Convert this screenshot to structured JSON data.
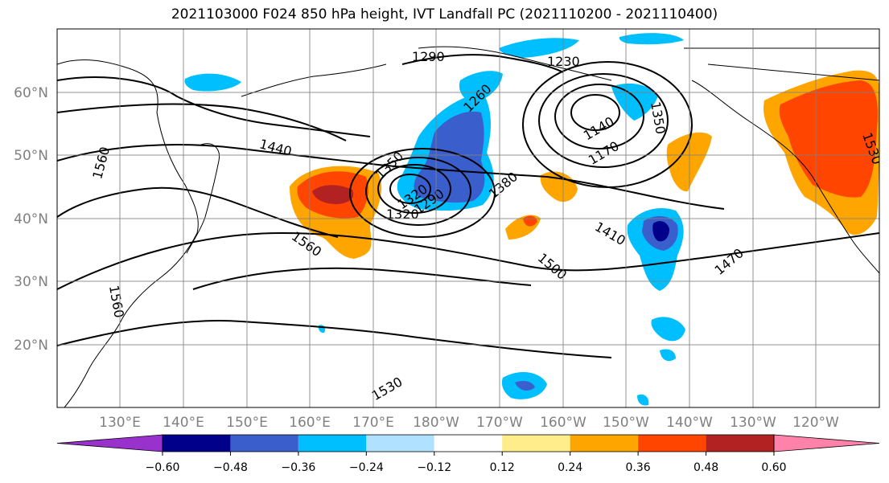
{
  "title": "2021103000 F024 850 hPa height, IVT Landfall PC (2021110200 - 2021110400)",
  "map": {
    "projection": "PlateCarree",
    "lon_range": [
      "120°E",
      "130°W"
    ],
    "lat_range": [
      "10°N",
      "70°N"
    ],
    "grid": true,
    "lat_labels": [
      "60°N",
      "50°N",
      "40°N",
      "30°N",
      "20°N"
    ],
    "lon_labels": [
      "130°E",
      "140°E",
      "150°E",
      "160°E",
      "170°E",
      "180°W",
      "170°W",
      "160°W",
      "150°W",
      "140°W",
      "130°W",
      "120°W"
    ]
  },
  "contours": {
    "variable": "850 hPa height",
    "labels": [
      "1290",
      "1230",
      "1260",
      "1560",
      "1440",
      "1350",
      "1380",
      "1140",
      "1170",
      "1320",
      "1290",
      "1320",
      "1410",
      "1560",
      "1500",
      "1470",
      "1560",
      "1530",
      "1530",
      "1350"
    ]
  },
  "colorbar": {
    "ticks": [
      "−0.60",
      "−0.48",
      "−0.36",
      "−0.24",
      "−0.12",
      "0.12",
      "0.24",
      "0.36",
      "0.48",
      "0.60"
    ],
    "colors": [
      "#9932cc",
      "#00008b",
      "#3a5fcd",
      "#00bfff",
      "#b0e2ff",
      "#ffffff",
      "#ffec8b",
      "#ffa500",
      "#ff4500",
      "#b22222",
      "#ff82ab"
    ]
  }
}
